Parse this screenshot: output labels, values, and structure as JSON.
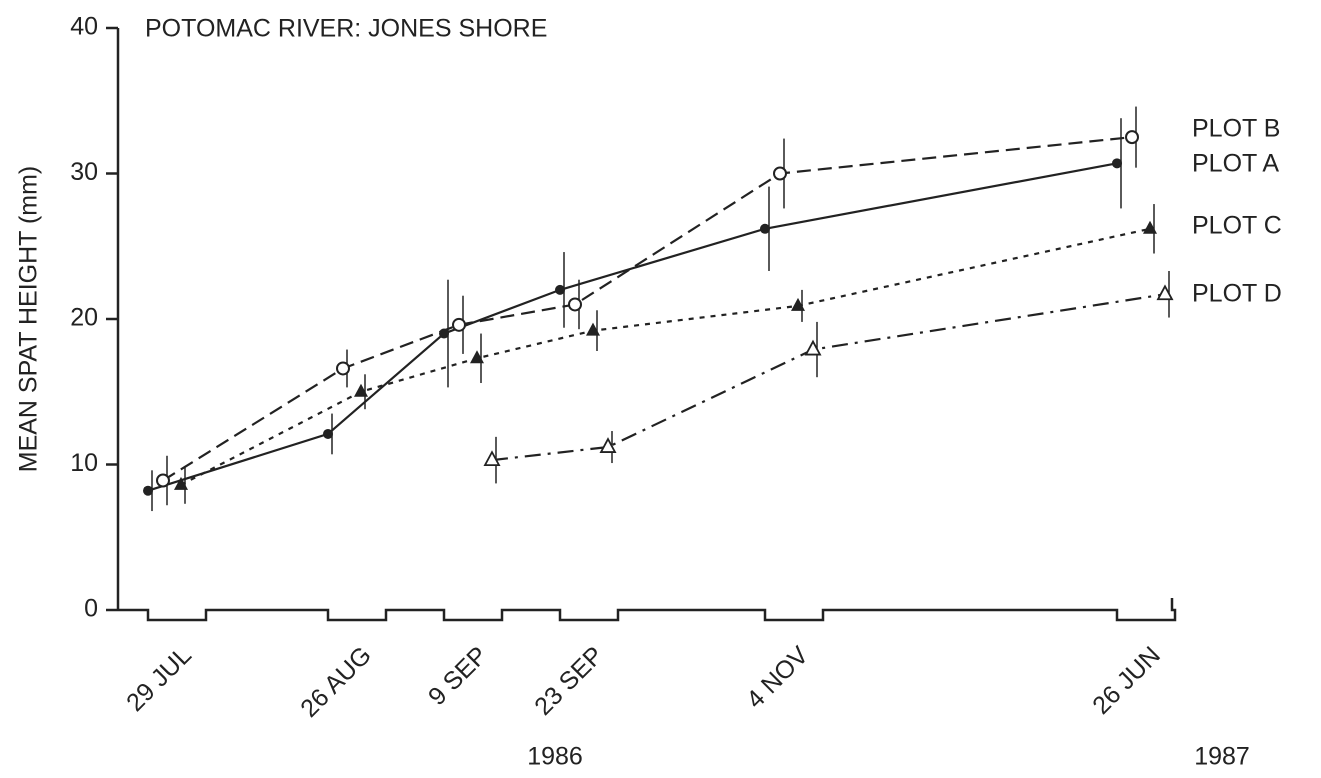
{
  "chart_data": {
    "type": "line",
    "title": "POTOMAC RIVER: JONES SHORE",
    "y_label": "MEAN SPAT HEIGHT (mm)",
    "categories": [
      "29 JUL",
      "26 AUG",
      "9 SEP",
      "23 SEP",
      "4 NOV",
      "26 JUN"
    ],
    "year_labels": [
      "1986",
      "1987"
    ],
    "ylim": [
      0,
      40
    ],
    "yticks": [
      0,
      10,
      20,
      30,
      40
    ],
    "series": [
      {
        "name": "PLOT A",
        "color": "#222222",
        "line": "solid",
        "marker": "filled-circle",
        "values": [
          8.2,
          12.1,
          19.0,
          22.0,
          26.2,
          30.7
        ],
        "errors": [
          1.4,
          1.4,
          3.7,
          2.6,
          2.9,
          3.1
        ]
      },
      {
        "name": "PLOT B",
        "color": "#222222",
        "line": "dashed",
        "marker": "open-circle",
        "values": [
          8.9,
          16.6,
          19.6,
          21.0,
          30.0,
          32.5
        ],
        "errors": [
          1.7,
          1.3,
          2.0,
          1.7,
          2.4,
          2.1
        ]
      },
      {
        "name": "PLOT C",
        "color": "#222222",
        "line": "dotted",
        "marker": "filled-triangle",
        "values": [
          8.6,
          15.0,
          17.3,
          19.2,
          20.9,
          26.2
        ],
        "errors": [
          1.3,
          1.2,
          1.7,
          1.4,
          1.1,
          1.7
        ]
      },
      {
        "name": "PLOT D",
        "color": "#222222",
        "line": "dash-dot",
        "marker": "open-triangle",
        "values": [
          null,
          null,
          10.3,
          11.2,
          17.9,
          21.7
        ],
        "errors": [
          null,
          null,
          1.6,
          1.1,
          1.9,
          1.6
        ]
      }
    ]
  }
}
